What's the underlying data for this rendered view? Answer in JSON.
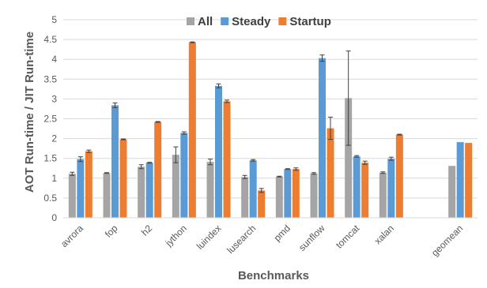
{
  "chart_data": {
    "type": "bar",
    "xlabel": "Benchmarks",
    "ylabel": "AOT Run-time / JIT Run-time",
    "ylim": [
      0,
      5
    ],
    "yticks": [
      "0",
      "0.5",
      "1",
      "1.5",
      "2",
      "2.5",
      "3",
      "3.5",
      "4",
      "4.5",
      "5"
    ],
    "grid": "horizontal",
    "legend_position": "top",
    "categories": [
      "avrora",
      "fop",
      "h2",
      "jython",
      "luindex",
      "lusearch",
      "pmd",
      "sunflow",
      "tomcat",
      "xalan",
      "",
      "geomean"
    ],
    "series": [
      {
        "name": "All",
        "color": "#a5a5a5",
        "values": [
          1.11,
          1.13,
          1.29,
          1.59,
          1.41,
          1.03,
          1.04,
          1.12,
          3.02,
          1.14,
          null,
          1.31
        ],
        "errors": [
          0.04,
          0.01,
          0.05,
          0.2,
          0.07,
          0.04,
          0.01,
          0.02,
          1.19,
          0.02,
          null,
          0
        ]
      },
      {
        "name": "Steady",
        "color": "#5b9bd5",
        "values": [
          1.48,
          2.84,
          1.39,
          2.14,
          3.33,
          1.45,
          1.23,
          4.03,
          1.55,
          1.49,
          null,
          1.91
        ],
        "errors": [
          0.06,
          0.06,
          0.01,
          0.03,
          0.05,
          0.02,
          0.01,
          0.08,
          0.02,
          0.04,
          null,
          0
        ]
      },
      {
        "name": "Startup",
        "color": "#ed7d31",
        "values": [
          1.68,
          1.98,
          2.42,
          4.43,
          2.94,
          0.69,
          1.23,
          2.26,
          1.39,
          2.1,
          null,
          1.89
        ],
        "errors": [
          0.03,
          0.01,
          0.01,
          0.01,
          0.03,
          0.05,
          0.03,
          0.28,
          0.04,
          0.01,
          null,
          0
        ]
      }
    ]
  }
}
